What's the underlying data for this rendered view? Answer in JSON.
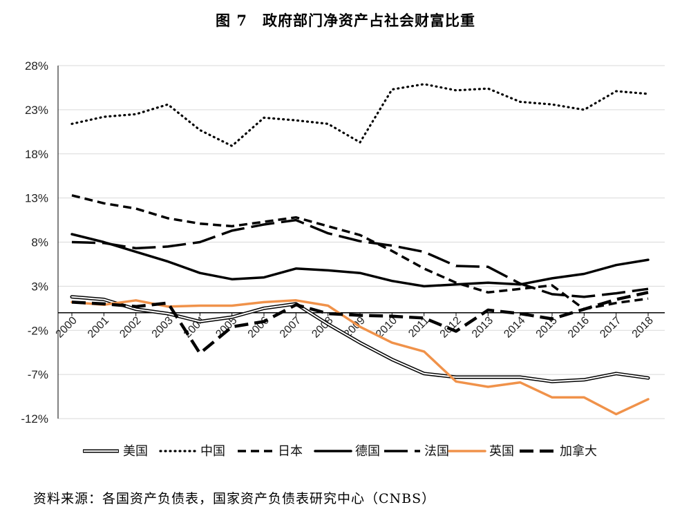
{
  "title": "图 7　政府部门净资产占社会财富比重",
  "source": "资料来源：各国资产负债表，国家资产负债表研究中心（CNBS）",
  "chart_data": {
    "type": "line",
    "title": "图 7　政府部门净资产占社会财富比重",
    "xlabel": "",
    "ylabel": "",
    "grid": true,
    "legend_position": "bottom",
    "ylim": [
      -12,
      28
    ],
    "y_ticks": [
      28,
      23,
      18,
      13,
      8,
      3,
      -2,
      -7,
      -12
    ],
    "y_tick_labels": [
      "28%",
      "23%",
      "18%",
      "13%",
      "8%",
      "3%",
      "-2%",
      "-7%",
      "-12%"
    ],
    "x": [
      "2000",
      "2001",
      "2002",
      "2003",
      "2004",
      "2005",
      "2006",
      "2007",
      "2008",
      "2009",
      "2010",
      "2011",
      "2012",
      "2013",
      "2014",
      "2015",
      "2016",
      "2017",
      "2018"
    ],
    "series": [
      {
        "name": "美国",
        "style": "double",
        "color": "#000000",
        "values": [
          1.8,
          1.5,
          0.4,
          -0.1,
          -1.0,
          -0.5,
          0.5,
          1.0,
          -1.3,
          -3.4,
          -5.3,
          -6.9,
          -7.3,
          -7.3,
          -7.3,
          -7.8,
          -7.6,
          -6.9,
          -7.4
        ]
      },
      {
        "name": "中国",
        "style": "dotted",
        "color": "#000000",
        "values": [
          21.4,
          22.2,
          22.5,
          23.6,
          20.7,
          18.9,
          22.1,
          21.8,
          21.4,
          19.3,
          25.3,
          25.9,
          25.2,
          25.4,
          23.9,
          23.6,
          23.0,
          25.1,
          24.8
        ]
      },
      {
        "name": "日本",
        "style": "dashed",
        "color": "#000000",
        "values": [
          13.3,
          12.4,
          11.8,
          10.7,
          10.1,
          9.8,
          10.3,
          10.8,
          9.8,
          8.8,
          7.0,
          5.0,
          3.4,
          2.3,
          2.7,
          3.1,
          0.4,
          1.1,
          1.6
        ]
      },
      {
        "name": "德国",
        "style": "solid",
        "color": "#000000",
        "values": [
          8.9,
          8.0,
          6.9,
          5.8,
          4.5,
          3.8,
          4.0,
          5.0,
          4.8,
          4.5,
          3.6,
          3.0,
          3.2,
          3.4,
          3.2,
          3.9,
          4.4,
          5.4,
          6.0
        ]
      },
      {
        "name": "法国",
        "style": "longdash",
        "color": "#000000",
        "values": [
          8.0,
          7.9,
          7.3,
          7.5,
          8.0,
          9.3,
          10.0,
          10.5,
          9.0,
          8.1,
          7.6,
          6.9,
          5.3,
          5.2,
          3.3,
          2.1,
          1.8,
          2.2,
          2.7
        ]
      },
      {
        "name": "英国",
        "style": "solid",
        "color": "#F0924A",
        "values": [
          1.2,
          0.9,
          1.4,
          0.7,
          0.8,
          0.8,
          1.2,
          1.4,
          0.8,
          -1.6,
          -3.4,
          -4.4,
          -7.8,
          -8.4,
          -7.9,
          -9.6,
          -9.6,
          -11.5,
          -9.8
        ]
      },
      {
        "name": "加拿大",
        "style": "heavydash",
        "color": "#000000",
        "values": [
          1.2,
          1.0,
          0.7,
          1.1,
          -4.6,
          -1.6,
          -1.0,
          0.9,
          -0.1,
          -0.3,
          -0.4,
          -0.6,
          -2.1,
          0.3,
          -0.1,
          -0.7,
          0.4,
          1.5,
          2.3
        ]
      }
    ]
  }
}
